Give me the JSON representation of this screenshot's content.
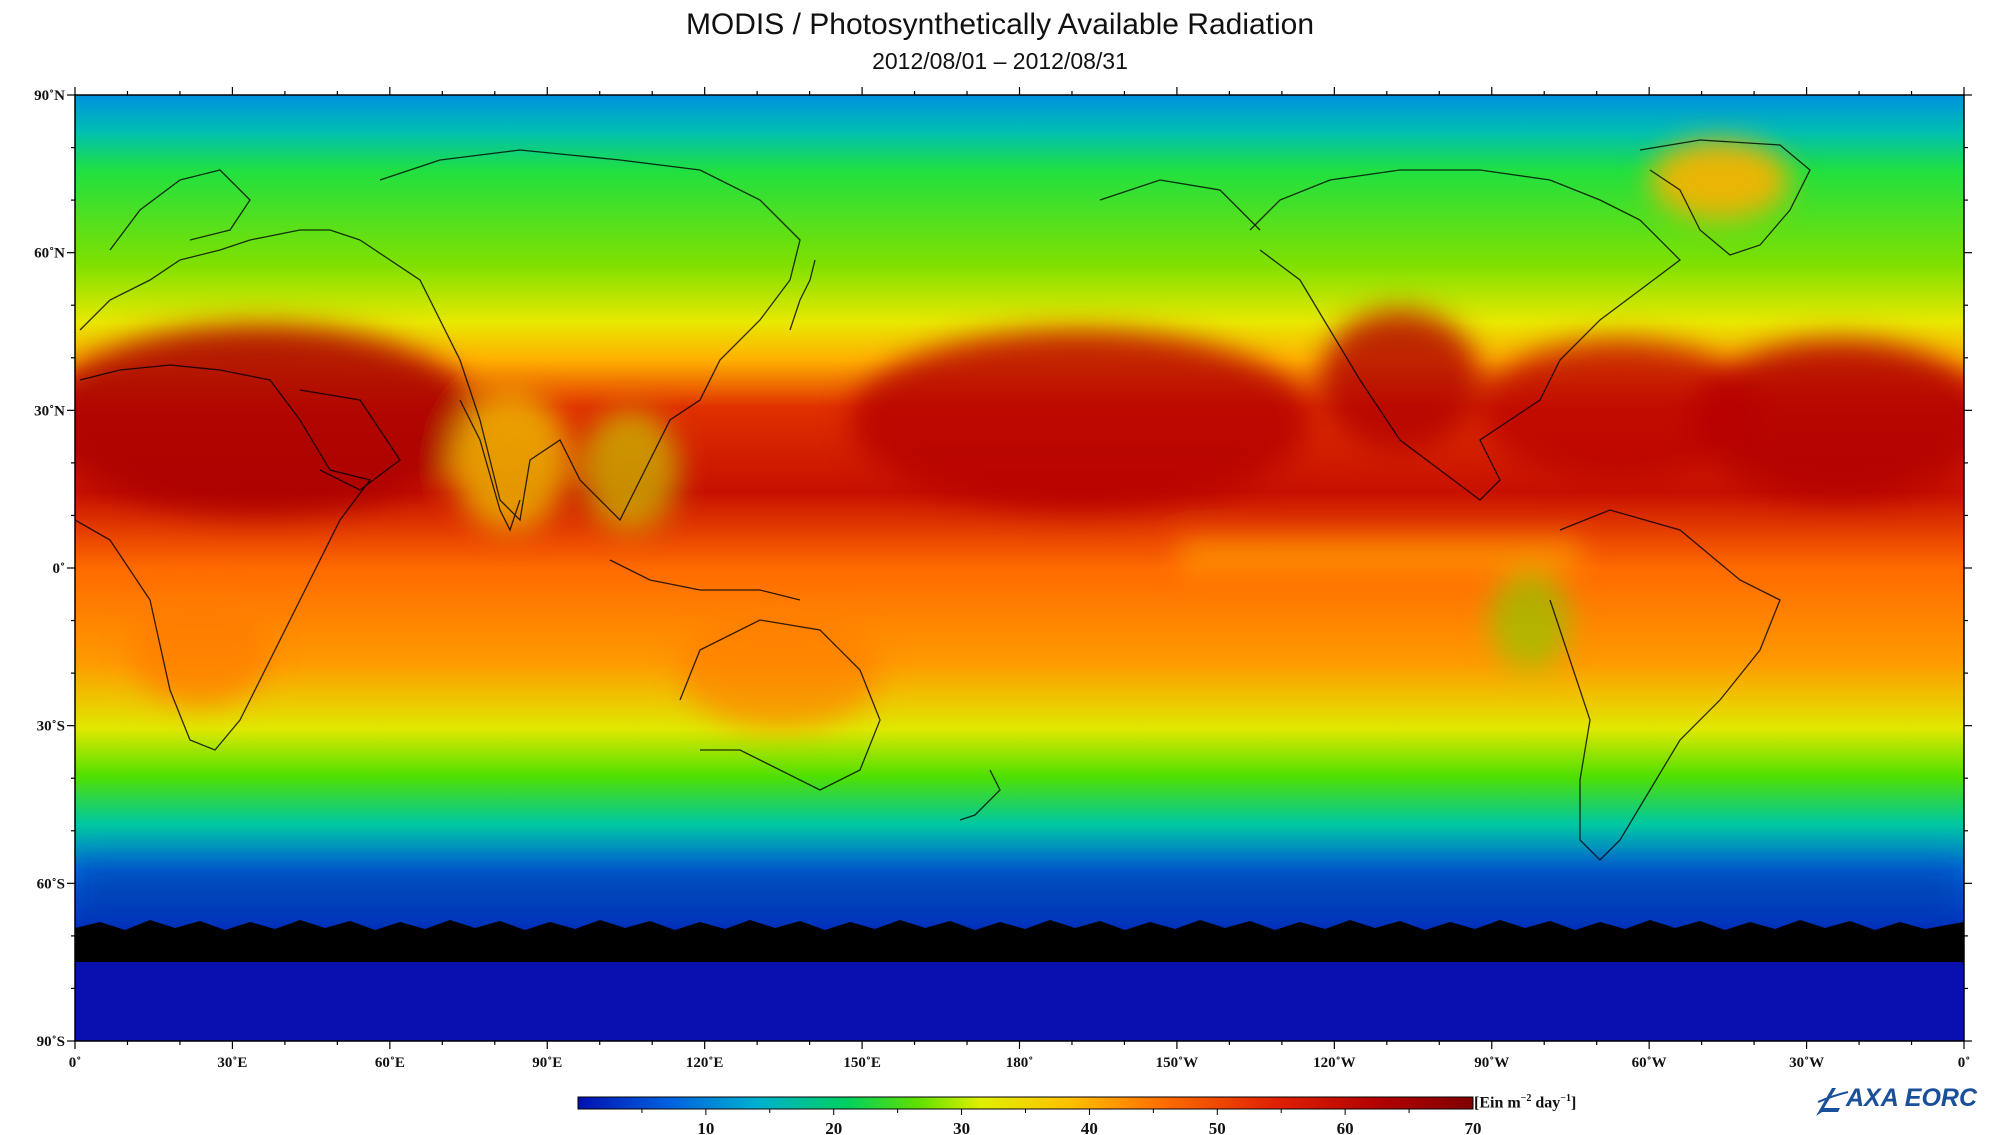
{
  "title": "MODIS / Photosynthetically Available Radiation",
  "subtitle": "2012/08/01 – 2012/08/31",
  "map": {
    "projection": "equirectangular",
    "lon_range": [
      0,
      360
    ],
    "lat_range": [
      -90,
      90
    ],
    "lat_labels": [
      "90˚N",
      "60˚N",
      "30˚N",
      "0˚",
      "30˚S",
      "60˚S",
      "90˚S"
    ],
    "lon_labels": [
      "0˚",
      "30˚E",
      "60˚E",
      "90˚E",
      "120˚E",
      "150˚E",
      "180˚",
      "150˚W",
      "120˚W",
      "90˚W",
      "60˚W",
      "30˚W",
      "0˚"
    ]
  },
  "colorbar": {
    "min": 0,
    "max": 70,
    "tick_labels": [
      "10",
      "20",
      "30",
      "40",
      "50",
      "60",
      "70"
    ],
    "unit": "[Ein m",
    "unit_exp1": "−2",
    "unit_mid": " day",
    "unit_exp2": "−1",
    "unit_end": "]",
    "colors": [
      "#0010b0",
      "#0060e0",
      "#00b0d0",
      "#00d060",
      "#60e000",
      "#e0f000",
      "#ffc000",
      "#ff7000",
      "#e02000",
      "#b00000",
      "#800000"
    ]
  },
  "logo": {
    "text": "AXA EORC"
  }
}
